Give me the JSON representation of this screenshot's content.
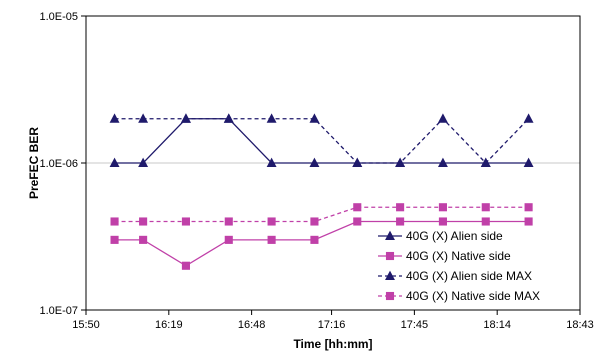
{
  "chart_data": {
    "type": "line",
    "xlabel": "Time [hh:mm]",
    "ylabel": "PreFEC BER",
    "y_scale": "log",
    "ylim": [
      1e-07,
      1e-05
    ],
    "y_ticks": [
      "1.0E-07",
      "1.0E-06",
      "1.0E-05"
    ],
    "y_tick_values": [
      1e-07,
      1e-06,
      1e-05
    ],
    "xlim": [
      "15:50",
      "18:43"
    ],
    "x_ticks": [
      "15:50",
      "16:19",
      "16:48",
      "17:16",
      "17:45",
      "18:14",
      "18:43"
    ],
    "grid": "horizontal",
    "legend_position": "bottom-right",
    "x": [
      "16:00",
      "16:10",
      "16:25",
      "16:40",
      "16:55",
      "17:10",
      "17:25",
      "17:40",
      "17:55",
      "18:10",
      "18:25"
    ],
    "series": [
      {
        "name": "40G (X) Alien side",
        "color": "#1f1a6b",
        "marker": "triangle",
        "line": "solid",
        "values": [
          1e-06,
          1e-06,
          2e-06,
          2e-06,
          1e-06,
          1e-06,
          1e-06,
          1e-06,
          1e-06,
          1e-06,
          1e-06
        ]
      },
      {
        "name": "40G (X) Native side",
        "color": "#c040a8",
        "marker": "square",
        "line": "solid",
        "values": [
          3e-07,
          3e-07,
          2e-07,
          3e-07,
          3e-07,
          3e-07,
          4e-07,
          4e-07,
          4e-07,
          4e-07,
          4e-07
        ]
      },
      {
        "name": "40G (X) Alien side MAX",
        "color": "#1f1a6b",
        "marker": "triangle",
        "line": "dashed",
        "values": [
          2e-06,
          2e-06,
          2e-06,
          2e-06,
          2e-06,
          2e-06,
          1e-06,
          1e-06,
          2e-06,
          1e-06,
          2e-06
        ]
      },
      {
        "name": "40G (X) Native side MAX",
        "color": "#c040a8",
        "marker": "square",
        "line": "dashed",
        "values": [
          4e-07,
          4e-07,
          4e-07,
          4e-07,
          4e-07,
          4e-07,
          5e-07,
          5e-07,
          5e-07,
          5e-07,
          5e-07
        ]
      }
    ]
  }
}
